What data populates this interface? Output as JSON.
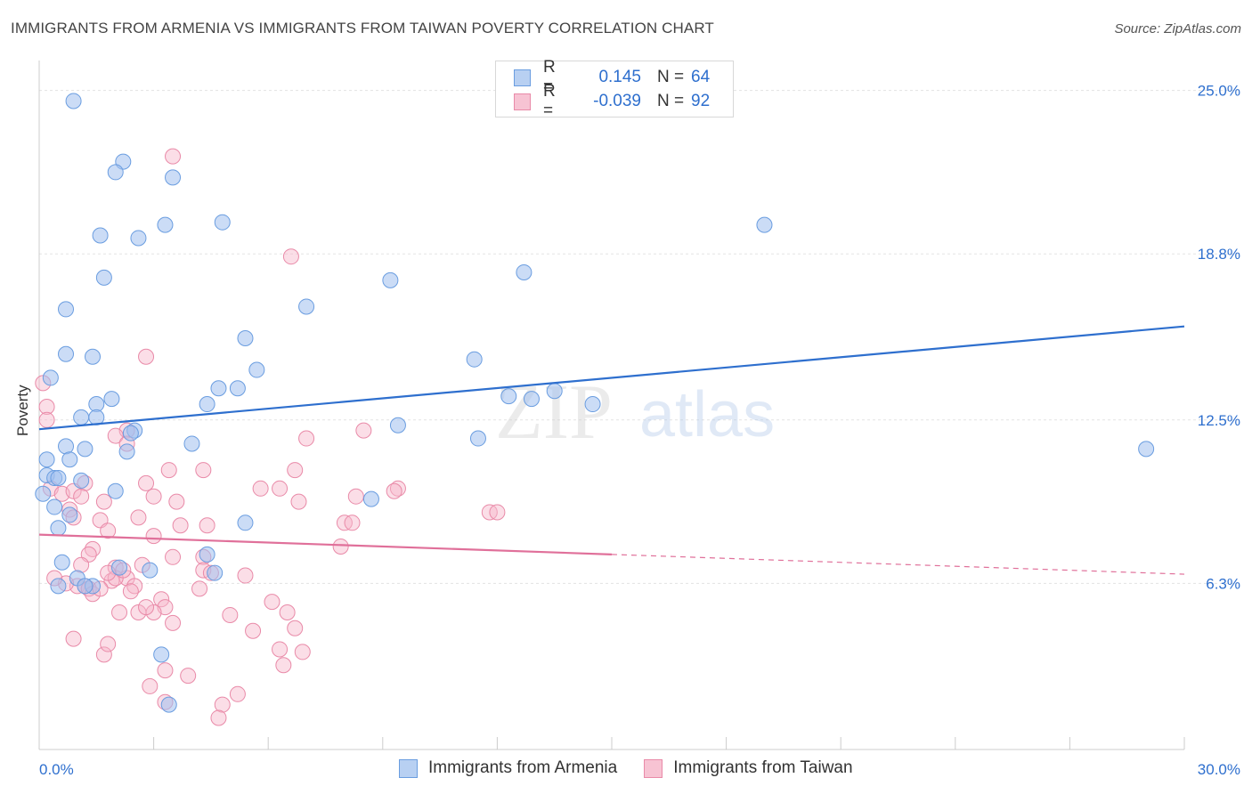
{
  "title": "IMMIGRANTS FROM ARMENIA VS IMMIGRANTS FROM TAIWAN POVERTY CORRELATION CHART",
  "source": "Source: ZipAtlas.com",
  "watermark": {
    "zip": "ZIP",
    "atlas": "atlas"
  },
  "legend": {
    "rows": [
      {
        "r_label": "R =",
        "r_value": "0.145",
        "n_label": "N =",
        "n_value": "64"
      },
      {
        "r_label": "R =",
        "r_value": "-0.039",
        "n_label": "N =",
        "n_value": "92"
      }
    ]
  },
  "chart_data": {
    "type": "scatter",
    "title": "IMMIGRANTS FROM ARMENIA VS IMMIGRANTS FROM TAIWAN POVERTY CORRELATION CHART",
    "xlabel": "",
    "ylabel": "Poverty",
    "xlim": [
      0,
      30
    ],
    "ylim": [
      0,
      26
    ],
    "x_tick_labels": [
      "0.0%",
      "30.0%"
    ],
    "y_ticks": [
      6.3,
      12.5,
      18.8,
      25.0
    ],
    "y_tick_labels": [
      "6.3%",
      "12.5%",
      "18.8%",
      "25.0%"
    ],
    "colors": {
      "armenia": "#6a9de0",
      "taiwan": "#e98aa8",
      "armenia_line": "#2e6fce",
      "taiwan_line": "#e0709a",
      "axis_text": "#2e6fce"
    },
    "series": [
      {
        "name": "Immigrants from Armenia",
        "trend": {
          "x": [
            0,
            30
          ],
          "y": [
            12.15,
            16.05
          ],
          "dashed_from": null
        },
        "points": [
          [
            0.9,
            24.6
          ],
          [
            2.2,
            22.3
          ],
          [
            2.0,
            21.9
          ],
          [
            3.5,
            21.7
          ],
          [
            1.6,
            19.5
          ],
          [
            3.3,
            19.9
          ],
          [
            2.6,
            19.4
          ],
          [
            4.8,
            20.0
          ],
          [
            1.7,
            17.9
          ],
          [
            0.7,
            16.7
          ],
          [
            12.7,
            18.1
          ],
          [
            9.2,
            17.8
          ],
          [
            7.0,
            16.8
          ],
          [
            19.0,
            19.9
          ],
          [
            5.4,
            15.6
          ],
          [
            0.7,
            15.0
          ],
          [
            1.4,
            14.9
          ],
          [
            5.7,
            14.4
          ],
          [
            11.4,
            14.8
          ],
          [
            0.3,
            14.1
          ],
          [
            4.7,
            13.7
          ],
          [
            5.2,
            13.7
          ],
          [
            1.9,
            13.3
          ],
          [
            1.5,
            13.1
          ],
          [
            12.3,
            13.4
          ],
          [
            12.9,
            13.3
          ],
          [
            13.5,
            13.6
          ],
          [
            14.5,
            13.1
          ],
          [
            4.4,
            13.1
          ],
          [
            1.1,
            12.6
          ],
          [
            1.5,
            12.6
          ],
          [
            2.5,
            12.1
          ],
          [
            2.4,
            12.0
          ],
          [
            9.4,
            12.3
          ],
          [
            11.5,
            11.8
          ],
          [
            4.0,
            11.6
          ],
          [
            0.7,
            11.5
          ],
          [
            1.2,
            11.4
          ],
          [
            2.3,
            11.3
          ],
          [
            0.8,
            11.0
          ],
          [
            0.2,
            11.0
          ],
          [
            29.0,
            11.4
          ],
          [
            0.2,
            10.4
          ],
          [
            0.4,
            10.3
          ],
          [
            0.5,
            10.3
          ],
          [
            1.1,
            10.2
          ],
          [
            2.0,
            9.8
          ],
          [
            0.1,
            9.7
          ],
          [
            0.4,
            9.2
          ],
          [
            8.7,
            9.5
          ],
          [
            0.8,
            8.9
          ],
          [
            5.4,
            8.6
          ],
          [
            0.5,
            8.4
          ],
          [
            4.4,
            7.4
          ],
          [
            0.6,
            7.1
          ],
          [
            2.1,
            6.9
          ],
          [
            2.9,
            6.8
          ],
          [
            4.6,
            6.7
          ],
          [
            1.0,
            6.5
          ],
          [
            1.4,
            6.2
          ],
          [
            3.2,
            3.6
          ],
          [
            3.4,
            1.7
          ],
          [
            1.2,
            6.2
          ],
          [
            0.5,
            6.2
          ]
        ]
      },
      {
        "name": "Immigrants from Taiwan",
        "trend": {
          "x": [
            0,
            30
          ],
          "y": [
            8.15,
            6.65
          ],
          "dashed_from": 15.0
        },
        "points": [
          [
            3.5,
            22.5
          ],
          [
            6.6,
            18.7
          ],
          [
            2.8,
            14.9
          ],
          [
            0.1,
            13.9
          ],
          [
            0.2,
            13.0
          ],
          [
            0.2,
            12.5
          ],
          [
            8.5,
            12.1
          ],
          [
            2.3,
            12.1
          ],
          [
            2.0,
            11.9
          ],
          [
            2.3,
            11.6
          ],
          [
            7.0,
            11.8
          ],
          [
            3.4,
            10.6
          ],
          [
            4.3,
            10.6
          ],
          [
            6.7,
            10.6
          ],
          [
            9.4,
            9.9
          ],
          [
            2.8,
            10.1
          ],
          [
            1.2,
            10.1
          ],
          [
            0.3,
            9.9
          ],
          [
            0.6,
            9.7
          ],
          [
            0.9,
            9.8
          ],
          [
            1.1,
            9.6
          ],
          [
            3.0,
            9.6
          ],
          [
            5.8,
            9.9
          ],
          [
            6.3,
            9.9
          ],
          [
            6.8,
            9.4
          ],
          [
            8.3,
            9.6
          ],
          [
            3.6,
            9.4
          ],
          [
            9.3,
            9.8
          ],
          [
            1.7,
            9.4
          ],
          [
            11.8,
            9.0
          ],
          [
            12.0,
            9.0
          ],
          [
            0.8,
            9.1
          ],
          [
            0.9,
            8.8
          ],
          [
            2.6,
            8.8
          ],
          [
            1.6,
            8.7
          ],
          [
            8.0,
            8.6
          ],
          [
            8.2,
            8.6
          ],
          [
            3.0,
            8.1
          ],
          [
            3.7,
            8.5
          ],
          [
            4.4,
            8.5
          ],
          [
            1.8,
            8.3
          ],
          [
            7.9,
            7.7
          ],
          [
            1.4,
            7.6
          ],
          [
            1.3,
            7.4
          ],
          [
            3.5,
            7.3
          ],
          [
            4.3,
            7.3
          ],
          [
            1.1,
            7.0
          ],
          [
            2.0,
            6.9
          ],
          [
            2.7,
            7.0
          ],
          [
            4.3,
            6.8
          ],
          [
            4.5,
            6.7
          ],
          [
            5.4,
            6.6
          ],
          [
            2.3,
            6.5
          ],
          [
            1.9,
            6.4
          ],
          [
            2.5,
            6.2
          ],
          [
            1.0,
            6.2
          ],
          [
            1.2,
            6.2
          ],
          [
            1.3,
            6.1
          ],
          [
            2.4,
            6.0
          ],
          [
            3.2,
            5.7
          ],
          [
            3.3,
            5.4
          ],
          [
            6.1,
            5.6
          ],
          [
            6.5,
            5.2
          ],
          [
            2.1,
            5.2
          ],
          [
            2.6,
            5.2
          ],
          [
            3.0,
            5.2
          ],
          [
            2.8,
            5.4
          ],
          [
            5.0,
            5.1
          ],
          [
            3.5,
            4.8
          ],
          [
            6.7,
            4.6
          ],
          [
            1.7,
            3.6
          ],
          [
            6.3,
            3.8
          ],
          [
            6.9,
            3.7
          ],
          [
            6.4,
            3.2
          ],
          [
            3.3,
            3.0
          ],
          [
            3.9,
            2.8
          ],
          [
            2.9,
            2.4
          ],
          [
            5.2,
            2.1
          ],
          [
            3.3,
            1.8
          ],
          [
            4.8,
            1.7
          ],
          [
            4.7,
            1.2
          ],
          [
            0.7,
            6.3
          ],
          [
            2.0,
            6.5
          ],
          [
            1.4,
            5.9
          ],
          [
            1.8,
            4.0
          ],
          [
            0.9,
            4.2
          ],
          [
            5.6,
            4.5
          ],
          [
            4.2,
            6.1
          ],
          [
            1.6,
            6.1
          ],
          [
            0.4,
            6.5
          ],
          [
            2.2,
            6.8
          ],
          [
            1.8,
            6.7
          ]
        ]
      }
    ]
  }
}
